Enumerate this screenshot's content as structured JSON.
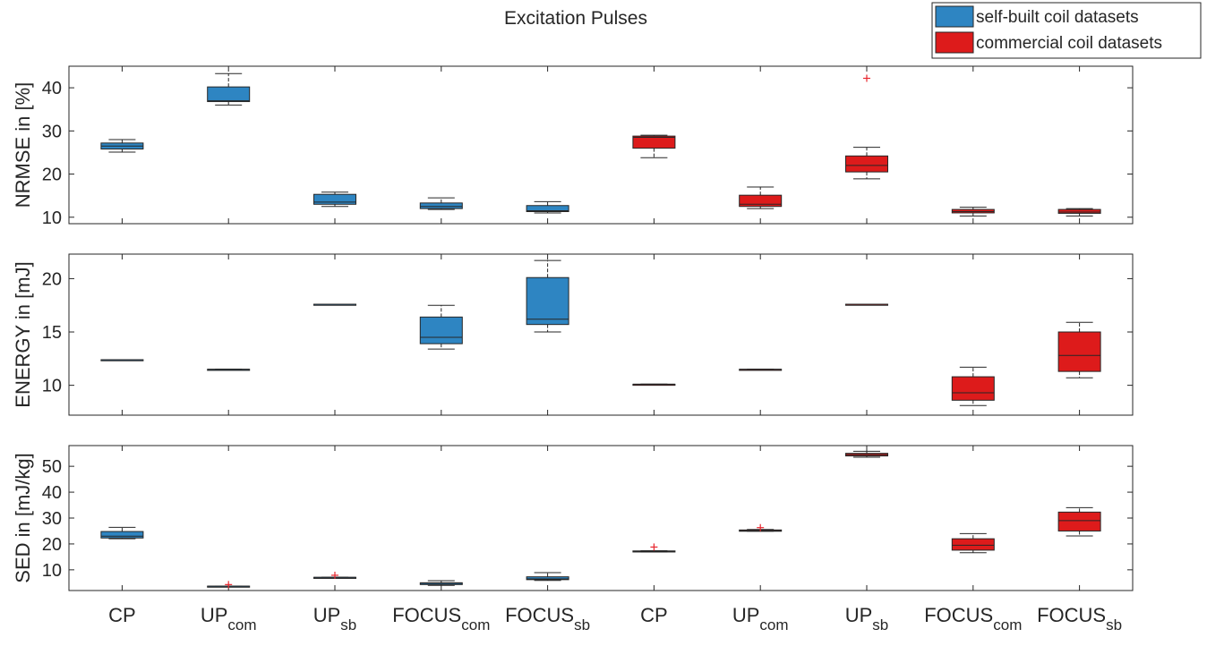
{
  "chart_data": {
    "type": "boxplot",
    "title": "Excitation Pulses",
    "colors": {
      "self_built": "#2e85c2",
      "commercial": "#dd1b1b",
      "outlier": "#e8272f",
      "axis": "#262626"
    },
    "legend": {
      "position": "top-right",
      "entries": [
        {
          "label": "self-built coil datasets",
          "color": "#2e85c2"
        },
        {
          "label": "commercial coil datasets",
          "color": "#dd1b1b"
        }
      ]
    },
    "categories": [
      {
        "base": "CP",
        "sub": "",
        "group": "self-built"
      },
      {
        "base": "UP",
        "sub": "com",
        "group": "self-built"
      },
      {
        "base": "UP",
        "sub": "sb",
        "group": "self-built"
      },
      {
        "base": "FOCUS",
        "sub": "com",
        "group": "self-built"
      },
      {
        "base": "FOCUS",
        "sub": "sb",
        "group": "self-built"
      },
      {
        "base": "CP",
        "sub": "",
        "group": "commercial"
      },
      {
        "base": "UP",
        "sub": "com",
        "group": "commercial"
      },
      {
        "base": "UP",
        "sub": "sb",
        "group": "commercial"
      },
      {
        "base": "FOCUS",
        "sub": "com",
        "group": "commercial"
      },
      {
        "base": "FOCUS",
        "sub": "sb",
        "group": "commercial"
      }
    ],
    "panels": [
      {
        "ylabel": "NRMSE in [%]",
        "ylim": [
          8.5,
          45
        ],
        "yticks": [
          10,
          20,
          30,
          40
        ],
        "boxes": [
          {
            "min": 25.1,
            "q1": 25.8,
            "median": 26.5,
            "q3": 27.2,
            "max": 28.0,
            "outliers": []
          },
          {
            "min": 36.0,
            "q1": 36.8,
            "median": 37.0,
            "q3": 40.2,
            "max": 43.3,
            "outliers": []
          },
          {
            "min": 12.5,
            "q1": 13.0,
            "median": 13.5,
            "q3": 15.3,
            "max": 15.8,
            "outliers": []
          },
          {
            "min": 11.8,
            "q1": 12.0,
            "median": 12.5,
            "q3": 13.3,
            "max": 14.5,
            "outliers": []
          },
          {
            "min": 11.0,
            "q1": 11.3,
            "median": 11.5,
            "q3": 12.7,
            "max": 13.6,
            "outliers": []
          },
          {
            "min": 23.8,
            "q1": 26.0,
            "median": 28.5,
            "q3": 28.8,
            "max": 29.0,
            "outliers": []
          },
          {
            "min": 12.0,
            "q1": 12.5,
            "median": 13.0,
            "q3": 15.1,
            "max": 17.0,
            "outliers": []
          },
          {
            "min": 18.9,
            "q1": 20.5,
            "median": 22.0,
            "q3": 24.2,
            "max": 26.2,
            "outliers": [
              42.2
            ]
          },
          {
            "min": 10.3,
            "q1": 11.0,
            "median": 11.3,
            "q3": 11.8,
            "max": 12.3,
            "outliers": []
          },
          {
            "min": 10.3,
            "q1": 10.9,
            "median": 11.2,
            "q3": 11.8,
            "max": 12.0,
            "outliers": []
          }
        ]
      },
      {
        "ylabel": "ENERGY in [mJ]",
        "ylim": [
          7.2,
          22.3
        ],
        "yticks": [
          10,
          15,
          20
        ],
        "boxes": [
          {
            "min": 12.4,
            "q1": 12.4,
            "median": 12.4,
            "q3": 12.4,
            "max": 12.4,
            "outliers": []
          },
          {
            "min": 11.5,
            "q1": 11.5,
            "median": 11.5,
            "q3": 11.5,
            "max": 11.5,
            "outliers": []
          },
          {
            "min": 17.6,
            "q1": 17.6,
            "median": 17.6,
            "q3": 17.6,
            "max": 17.6,
            "outliers": []
          },
          {
            "min": 13.4,
            "q1": 13.9,
            "median": 14.5,
            "q3": 16.4,
            "max": 17.5,
            "outliers": []
          },
          {
            "min": 15.0,
            "q1": 15.7,
            "median": 16.2,
            "q3": 20.1,
            "max": 21.7,
            "outliers": []
          },
          {
            "min": 10.1,
            "q1": 10.1,
            "median": 10.1,
            "q3": 10.1,
            "max": 10.1,
            "outliers": []
          },
          {
            "min": 11.5,
            "q1": 11.5,
            "median": 11.5,
            "q3": 11.5,
            "max": 11.5,
            "outliers": []
          },
          {
            "min": 17.6,
            "q1": 17.6,
            "median": 17.6,
            "q3": 17.6,
            "max": 17.6,
            "outliers": []
          },
          {
            "min": 8.1,
            "q1": 8.6,
            "median": 9.3,
            "q3": 10.8,
            "max": 11.7,
            "outliers": []
          },
          {
            "min": 10.7,
            "q1": 11.3,
            "median": 12.8,
            "q3": 15.0,
            "max": 15.9,
            "outliers": []
          }
        ]
      },
      {
        "ylabel": "SED in [mJ/kg]",
        "ylim": [
          2,
          58
        ],
        "yticks": [
          10,
          20,
          30,
          40,
          50
        ],
        "boxes": [
          {
            "min": 22.0,
            "q1": 22.3,
            "median": 23.0,
            "q3": 24.8,
            "max": 26.4,
            "outliers": []
          },
          {
            "min": 3.7,
            "q1": 3.7,
            "median": 3.7,
            "q3": 3.7,
            "max": 3.7,
            "outliers": [
              4.3
            ]
          },
          {
            "min": 7.1,
            "q1": 7.1,
            "median": 7.1,
            "q3": 7.1,
            "max": 7.1,
            "outliers": [
              7.9
            ]
          },
          {
            "min": 4.0,
            "q1": 4.3,
            "median": 4.8,
            "q3": 5.0,
            "max": 5.8,
            "outliers": []
          },
          {
            "min": 5.9,
            "q1": 6.2,
            "median": 6.5,
            "q3": 7.3,
            "max": 8.9,
            "outliers": []
          },
          {
            "min": 16.9,
            "q1": 16.9,
            "median": 17.1,
            "q3": 17.3,
            "max": 17.4,
            "outliers": [
              18.8
            ]
          },
          {
            "min": 24.9,
            "q1": 24.9,
            "median": 25.1,
            "q3": 25.4,
            "max": 25.6,
            "outliers": [
              26.3
            ]
          },
          {
            "min": 53.5,
            "q1": 54.0,
            "median": 54.5,
            "q3": 55.0,
            "max": 55.8,
            "outliers": []
          },
          {
            "min": 16.6,
            "q1": 17.6,
            "median": 19.5,
            "q3": 22.0,
            "max": 24.0,
            "outliers": []
          },
          {
            "min": 23.1,
            "q1": 25.0,
            "median": 29.0,
            "q3": 32.3,
            "max": 34.0,
            "outliers": []
          }
        ]
      }
    ]
  }
}
